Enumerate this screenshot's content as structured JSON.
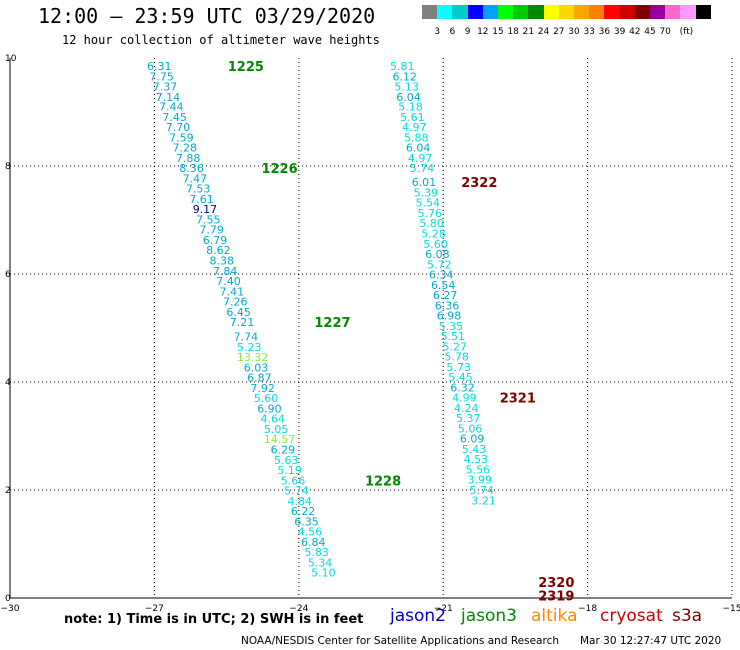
{
  "header": {
    "title": "12:00 – 23:59 UTC 03/29/2020",
    "subtitle": "12 hour collection of altimeter wave heights"
  },
  "colorbar": {
    "colors": [
      "#808080",
      "#00ffff",
      "#00cccc",
      "#0000ff",
      "#00a0ff",
      "#00ff00",
      "#00cc00",
      "#008800",
      "#ffff00",
      "#ffd700",
      "#ffa500",
      "#ff8000",
      "#ff0000",
      "#cc0000",
      "#800000",
      "#990099",
      "#ff66cc",
      "#ff99ff",
      "#000000"
    ],
    "ticks": [
      "3",
      "6",
      "9",
      "12",
      "15",
      "18",
      "21",
      "24",
      "27",
      "30",
      "33",
      "36",
      "39",
      "42",
      "45",
      "70",
      "(ft)"
    ]
  },
  "chart_data": {
    "type": "scatter",
    "xlim": [
      -30,
      -15
    ],
    "ylim": [
      0,
      10
    ],
    "x_ticks": [
      "−30",
      "−27",
      "−24",
      "−21",
      "−18",
      "−15"
    ],
    "y_ticks": [
      "0",
      "2",
      "4",
      "6",
      "8",
      "10"
    ],
    "grid": true,
    "series": [
      {
        "points": [
          {
            "x": -26.9,
            "y": 9.85,
            "label": "6.31",
            "color": "#00aacc"
          },
          {
            "x": -26.85,
            "y": 9.66,
            "label": "7.75",
            "color": "#00aacc"
          },
          {
            "x": -26.78,
            "y": 9.47,
            "label": "7.37",
            "color": "#00aacc"
          },
          {
            "x": -26.72,
            "y": 9.28,
            "label": "7.14",
            "color": "#00aacc"
          },
          {
            "x": -26.65,
            "y": 9.1,
            "label": "7.44",
            "color": "#00aacc"
          },
          {
            "x": -26.58,
            "y": 8.91,
            "label": "7.45",
            "color": "#00aacc"
          },
          {
            "x": -26.51,
            "y": 8.72,
            "label": "7.70",
            "color": "#00aacc"
          },
          {
            "x": -26.44,
            "y": 8.53,
            "label": "7.59",
            "color": "#00aacc"
          },
          {
            "x": -26.37,
            "y": 8.34,
            "label": "7.28",
            "color": "#00aacc"
          },
          {
            "x": -26.3,
            "y": 8.15,
            "label": "7.88",
            "color": "#00aacc"
          },
          {
            "x": -26.23,
            "y": 7.96,
            "label": "8.36",
            "color": "#00aacc"
          },
          {
            "x": -26.16,
            "y": 7.77,
            "label": "7.47",
            "color": "#00aacc"
          },
          {
            "x": -26.09,
            "y": 7.58,
            "label": "7.53",
            "color": "#00aacc"
          },
          {
            "x": -26.02,
            "y": 7.39,
            "label": "7.61",
            "color": "#00aacc"
          },
          {
            "x": -25.95,
            "y": 7.2,
            "label": "9.17",
            "color": "#000080"
          },
          {
            "x": -25.88,
            "y": 7.01,
            "label": "7.55",
            "color": "#00aacc"
          },
          {
            "x": -25.81,
            "y": 6.82,
            "label": "7.79",
            "color": "#00aacc"
          },
          {
            "x": -25.74,
            "y": 6.63,
            "label": "6.79",
            "color": "#00aacc"
          },
          {
            "x": -25.67,
            "y": 6.44,
            "label": "8.62",
            "color": "#00aacc"
          },
          {
            "x": -25.6,
            "y": 6.25,
            "label": "8.38",
            "color": "#00aacc"
          },
          {
            "x": -25.53,
            "y": 6.06,
            "label": "7.84",
            "color": "#00aacc"
          },
          {
            "x": -25.46,
            "y": 5.87,
            "label": "7.40",
            "color": "#00aacc"
          },
          {
            "x": -25.39,
            "y": 5.68,
            "label": "7.41",
            "color": "#00aacc"
          },
          {
            "x": -25.32,
            "y": 5.49,
            "label": "7.26",
            "color": "#00aacc"
          },
          {
            "x": -25.25,
            "y": 5.3,
            "label": "6.45",
            "color": "#00aacc"
          },
          {
            "x": -25.18,
            "y": 5.11,
            "label": "7.21",
            "color": "#00aacc"
          },
          {
            "x": -25.1,
            "y": 4.84,
            "label": "7.74",
            "color": "#00aacc"
          },
          {
            "x": -25.03,
            "y": 4.65,
            "label": "5.23",
            "color": "#00dddd"
          },
          {
            "x": -24.96,
            "y": 4.46,
            "label": "13.32",
            "color": "#88ee44"
          },
          {
            "x": -24.89,
            "y": 4.27,
            "label": "6.03",
            "color": "#00aacc"
          },
          {
            "x": -24.82,
            "y": 4.08,
            "label": "6.87",
            "color": "#00aacc"
          },
          {
            "x": -24.75,
            "y": 3.89,
            "label": "7.92",
            "color": "#00aacc"
          },
          {
            "x": -24.68,
            "y": 3.7,
            "label": "5.60",
            "color": "#00dddd"
          },
          {
            "x": -24.61,
            "y": 3.51,
            "label": "6.90",
            "color": "#00aacc"
          },
          {
            "x": -24.54,
            "y": 3.32,
            "label": "4.64",
            "color": "#00dddd"
          },
          {
            "x": -24.47,
            "y": 3.13,
            "label": "5.05",
            "color": "#00dddd"
          },
          {
            "x": -24.4,
            "y": 2.94,
            "label": "14.57",
            "color": "#88ee44"
          },
          {
            "x": -24.33,
            "y": 2.75,
            "label": "6.29",
            "color": "#00aacc"
          },
          {
            "x": -24.26,
            "y": 2.56,
            "label": "5.63",
            "color": "#00dddd"
          },
          {
            "x": -24.19,
            "y": 2.37,
            "label": "5.19",
            "color": "#00dddd"
          },
          {
            "x": -24.12,
            "y": 2.18,
            "label": "5.66",
            "color": "#00dddd"
          },
          {
            "x": -24.05,
            "y": 1.99,
            "label": "5.74",
            "color": "#00dddd"
          },
          {
            "x": -23.98,
            "y": 1.8,
            "label": "4.84",
            "color": "#00dddd"
          },
          {
            "x": -23.91,
            "y": 1.61,
            "label": "6.22",
            "color": "#00aacc"
          },
          {
            "x": -23.84,
            "y": 1.42,
            "label": "6.35",
            "color": "#00aacc"
          },
          {
            "x": -23.77,
            "y": 1.23,
            "label": "4.56",
            "color": "#00dddd"
          },
          {
            "x": -23.7,
            "y": 1.04,
            "label": "6.84",
            "color": "#00aacc"
          },
          {
            "x": -23.63,
            "y": 0.85,
            "label": "5.83",
            "color": "#00dddd"
          },
          {
            "x": -23.56,
            "y": 0.66,
            "label": "5.34",
            "color": "#00dddd"
          },
          {
            "x": -23.49,
            "y": 0.47,
            "label": "5.10",
            "color": "#00dddd"
          }
        ]
      },
      {
        "points": [
          {
            "x": -21.85,
            "y": 9.85,
            "label": "5.81",
            "color": "#00dddd"
          },
          {
            "x": -21.8,
            "y": 9.66,
            "label": "6.12",
            "color": "#00aacc"
          },
          {
            "x": -21.76,
            "y": 9.47,
            "label": "5.13",
            "color": "#00dddd"
          },
          {
            "x": -21.72,
            "y": 9.28,
            "label": "6.04",
            "color": "#00aacc"
          },
          {
            "x": -21.68,
            "y": 9.1,
            "label": "5.18",
            "color": "#00dddd"
          },
          {
            "x": -21.64,
            "y": 8.91,
            "label": "5.61",
            "color": "#00dddd"
          },
          {
            "x": -21.6,
            "y": 8.72,
            "label": "4.97",
            "color": "#00dddd"
          },
          {
            "x": -21.56,
            "y": 8.53,
            "label": "5.88",
            "color": "#00dddd"
          },
          {
            "x": -21.52,
            "y": 8.34,
            "label": "6.04",
            "color": "#00aacc"
          },
          {
            "x": -21.48,
            "y": 8.15,
            "label": "4.97",
            "color": "#00dddd"
          },
          {
            "x": -21.44,
            "y": 7.96,
            "label": "5.74",
            "color": "#00dddd"
          },
          {
            "x": -21.4,
            "y": 7.7,
            "label": "6.01",
            "color": "#00aacc"
          },
          {
            "x": -21.36,
            "y": 7.51,
            "label": "5.39",
            "color": "#00dddd"
          },
          {
            "x": -21.32,
            "y": 7.32,
            "label": "5.54",
            "color": "#00dddd"
          },
          {
            "x": -21.28,
            "y": 7.13,
            "label": "5.76",
            "color": "#00dddd"
          },
          {
            "x": -21.24,
            "y": 6.94,
            "label": "5.80",
            "color": "#00dddd"
          },
          {
            "x": -21.2,
            "y": 6.75,
            "label": "5.28",
            "color": "#00dddd"
          },
          {
            "x": -21.16,
            "y": 6.56,
            "label": "5.60",
            "color": "#00dddd"
          },
          {
            "x": -21.12,
            "y": 6.37,
            "label": "6.08",
            "color": "#00aacc"
          },
          {
            "x": -21.08,
            "y": 6.18,
            "label": "5.72",
            "color": "#00dddd"
          },
          {
            "x": -21.04,
            "y": 5.99,
            "label": "6.34",
            "color": "#00aacc"
          },
          {
            "x": -21.0,
            "y": 5.8,
            "label": "6.54",
            "color": "#00aacc"
          },
          {
            "x": -20.96,
            "y": 5.61,
            "label": "6.27",
            "color": "#00aacc"
          },
          {
            "x": -20.92,
            "y": 5.42,
            "label": "6.36",
            "color": "#00aacc"
          },
          {
            "x": -20.88,
            "y": 5.23,
            "label": "6.98",
            "color": "#00aacc"
          },
          {
            "x": -20.84,
            "y": 5.04,
            "label": "5.35",
            "color": "#00dddd"
          },
          {
            "x": -20.8,
            "y": 4.85,
            "label": "5.51",
            "color": "#00dddd"
          },
          {
            "x": -20.76,
            "y": 4.66,
            "label": "5.27",
            "color": "#00dddd"
          },
          {
            "x": -20.72,
            "y": 4.47,
            "label": "5.78",
            "color": "#00dddd"
          },
          {
            "x": -20.68,
            "y": 4.28,
            "label": "5.73",
            "color": "#00dddd"
          },
          {
            "x": -20.64,
            "y": 4.09,
            "label": "5.45",
            "color": "#00dddd"
          },
          {
            "x": -20.6,
            "y": 3.9,
            "label": "6.32",
            "color": "#00aacc"
          },
          {
            "x": -20.56,
            "y": 3.71,
            "label": "4.99",
            "color": "#00dddd"
          },
          {
            "x": -20.52,
            "y": 3.52,
            "label": "4.24",
            "color": "#00dddd"
          },
          {
            "x": -20.48,
            "y": 3.33,
            "label": "5.37",
            "color": "#00dddd"
          },
          {
            "x": -20.44,
            "y": 3.14,
            "label": "5.06",
            "color": "#00dddd"
          },
          {
            "x": -20.4,
            "y": 2.95,
            "label": "6.09",
            "color": "#00aacc"
          },
          {
            "x": -20.36,
            "y": 2.76,
            "label": "5.43",
            "color": "#00dddd"
          },
          {
            "x": -20.32,
            "y": 2.57,
            "label": "4.53",
            "color": "#00dddd"
          },
          {
            "x": -20.28,
            "y": 2.38,
            "label": "5.56",
            "color": "#00dddd"
          },
          {
            "x": -20.24,
            "y": 2.19,
            "label": "3.99",
            "color": "#00dddd"
          },
          {
            "x": -20.2,
            "y": 2.0,
            "label": "5.74",
            "color": "#00dddd"
          },
          {
            "x": -20.16,
            "y": 1.81,
            "label": "3.21",
            "color": "#00dddd"
          }
        ]
      }
    ],
    "annotations": [
      {
        "x": -25.1,
        "y": 9.85,
        "text": "1225",
        "color": "#008800"
      },
      {
        "x": -24.4,
        "y": 7.96,
        "text": "1226",
        "color": "#008800"
      },
      {
        "x": -23.3,
        "y": 5.11,
        "text": "1227",
        "color": "#008800"
      },
      {
        "x": -22.25,
        "y": 2.18,
        "text": "1228",
        "color": "#008800"
      },
      {
        "x": -20.25,
        "y": 7.7,
        "text": "2322",
        "color": "#800000"
      },
      {
        "x": -19.45,
        "y": 3.71,
        "text": "2321",
        "color": "#800000"
      },
      {
        "x": -18.65,
        "y": 0.3,
        "text": "2320",
        "color": "#800000"
      },
      {
        "x": -18.65,
        "y": 0.05,
        "text": "2319",
        "color": "#800000"
      }
    ]
  },
  "footer": {
    "note": "note: 1) Time is in UTC; 2) SWH is in feet",
    "missions": [
      {
        "name": "jason2",
        "color": "#0000cc"
      },
      {
        "name": "jason3",
        "color": "#008800"
      },
      {
        "name": "altika",
        "color": "#ff8800"
      },
      {
        "name": "cryosat",
        "color": "#cc0000"
      },
      {
        "name": "s3a",
        "color": "#800000"
      }
    ],
    "credit": "NOAA/NESDIS Center for Satellite Applications and Research",
    "timestamp": "Mar 30 12:27:47 UTC 2020"
  }
}
